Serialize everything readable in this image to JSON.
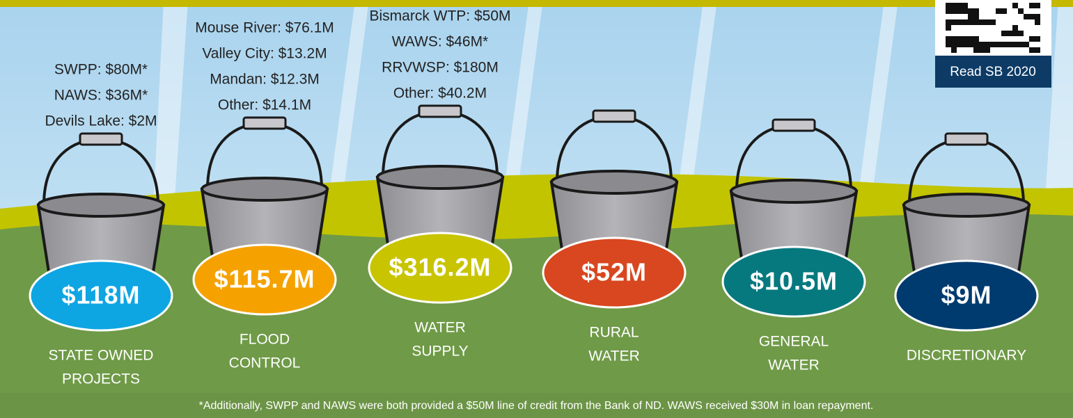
{
  "header": {
    "button": "Read SB 2020"
  },
  "buckets": [
    {
      "amount": "$118M",
      "label": [
        "STATE OWNED",
        "PROJECTS"
      ],
      "items": [
        "SWPP: $80M*",
        "NAWS: $36M*",
        "Devils Lake: $2M"
      ]
    },
    {
      "amount": "$115.7M",
      "label": [
        "FLOOD",
        "CONTROL"
      ],
      "items": [
        "Mouse River: $76.1M",
        "Valley City: $13.2M",
        "Mandan: $12.3M",
        "Other: $14.1M"
      ]
    },
    {
      "amount": "$316.2M",
      "label": [
        "WATER",
        "SUPPLY"
      ],
      "items": [
        "Bismarck WTP: $50M",
        "WAWS: $46M*",
        "RRVWSP: $180M",
        "Other: $40.2M"
      ]
    },
    {
      "amount": "$52M",
      "label": [
        "RURAL",
        "WATER"
      ],
      "items": []
    },
    {
      "amount": "$10.5M",
      "label": [
        "GENERAL",
        "WATER"
      ],
      "items": []
    },
    {
      "amount": "$9M",
      "label": [
        "DISCRETIONARY"
      ],
      "items": []
    }
  ],
  "footnote": "*Additionally, SWPP and NAWS were both provided a $50M line of credit from the Bank of ND. WAWS received $30M in loan repayment."
}
